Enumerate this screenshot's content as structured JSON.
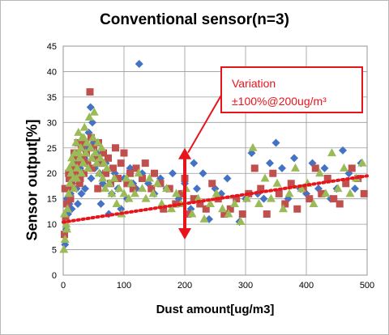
{
  "chart_data": {
    "type": "scatter",
    "title": "Conventional sensor(n=3)",
    "xlabel": "Dust amount[ug/m3]",
    "ylabel": "Sensor output[%]",
    "xlim": [
      0,
      500
    ],
    "ylim": [
      0,
      45
    ],
    "xticks": [
      0,
      100,
      200,
      300,
      400,
      500
    ],
    "yticks": [
      0,
      5,
      10,
      15,
      20,
      25,
      30,
      35,
      40,
      45
    ],
    "grid": true,
    "series_colors": [
      "#4472c4",
      "#c0504d",
      "#9bbb59"
    ],
    "series_markers": [
      "diamond",
      "square",
      "triangle"
    ],
    "series": [
      {
        "values": [
          [
            3,
            6
          ],
          [
            5,
            9
          ],
          [
            8,
            12
          ],
          [
            10,
            14
          ],
          [
            12,
            16
          ],
          [
            15,
            18
          ],
          [
            18,
            20
          ],
          [
            20,
            22
          ],
          [
            22,
            17
          ],
          [
            25,
            19
          ],
          [
            28,
            21
          ],
          [
            30,
            16
          ],
          [
            32,
            20
          ],
          [
            35,
            23
          ],
          [
            38,
            25
          ],
          [
            40,
            22
          ],
          [
            42,
            28
          ],
          [
            45,
            33
          ],
          [
            48,
            30
          ],
          [
            50,
            26
          ],
          [
            52,
            21
          ],
          [
            55,
            24
          ],
          [
            60,
            20
          ],
          [
            62,
            14
          ],
          [
            65,
            18
          ],
          [
            70,
            22
          ],
          [
            75,
            12
          ],
          [
            80,
            16
          ],
          [
            85,
            20
          ],
          [
            90,
            17
          ],
          [
            95,
            13
          ],
          [
            100,
            19
          ],
          [
            105,
            15
          ],
          [
            110,
            21
          ],
          [
            115,
            18
          ],
          [
            120,
            17
          ],
          [
            125,
            41.5
          ],
          [
            130,
            20
          ],
          [
            140,
            18
          ],
          [
            150,
            16
          ],
          [
            160,
            19
          ],
          [
            170,
            17
          ],
          [
            180,
            20
          ],
          [
            190,
            15
          ],
          [
            200,
            18
          ],
          [
            210,
            13
          ],
          [
            215,
            22
          ],
          [
            220,
            17
          ],
          [
            230,
            20
          ],
          [
            240,
            11
          ],
          [
            250,
            17
          ],
          [
            260,
            16
          ],
          [
            270,
            19
          ],
          [
            290,
            10.5
          ],
          [
            300,
            15
          ],
          [
            310,
            24
          ],
          [
            320,
            16
          ],
          [
            330,
            15
          ],
          [
            340,
            22
          ],
          [
            350,
            26
          ],
          [
            360,
            21
          ],
          [
            370,
            15
          ],
          [
            380,
            23
          ],
          [
            390,
            17
          ],
          [
            400,
            16
          ],
          [
            410,
            22
          ],
          [
            420,
            17
          ],
          [
            430,
            21
          ],
          [
            440,
            15
          ],
          [
            450,
            17
          ],
          [
            460,
            24.5
          ],
          [
            470,
            20
          ],
          [
            480,
            17
          ],
          [
            490,
            22
          ],
          [
            6,
            15
          ],
          [
            14,
            13
          ],
          [
            24,
            14
          ],
          [
            36,
            17
          ],
          [
            46,
            19
          ]
        ]
      },
      {
        "values": [
          [
            2,
            8
          ],
          [
            4,
            11
          ],
          [
            6,
            14
          ],
          [
            8,
            17
          ],
          [
            10,
            19
          ],
          [
            12,
            15
          ],
          [
            14,
            18
          ],
          [
            16,
            21
          ],
          [
            18,
            24
          ],
          [
            20,
            20
          ],
          [
            22,
            23
          ],
          [
            24,
            26
          ],
          [
            26,
            22
          ],
          [
            28,
            19
          ],
          [
            30,
            25
          ],
          [
            32,
            23
          ],
          [
            34,
            20
          ],
          [
            36,
            26
          ],
          [
            38,
            24
          ],
          [
            40,
            22
          ],
          [
            44,
            36
          ],
          [
            46,
            27
          ],
          [
            50,
            25
          ],
          [
            54,
            23
          ],
          [
            58,
            26
          ],
          [
            62,
            22
          ],
          [
            66,
            24
          ],
          [
            70,
            20
          ],
          [
            74,
            23
          ],
          [
            78,
            18
          ],
          [
            82,
            21
          ],
          [
            86,
            25
          ],
          [
            90,
            19
          ],
          [
            95,
            22
          ],
          [
            100,
            24
          ],
          [
            105,
            18
          ],
          [
            110,
            20
          ],
          [
            115,
            17
          ],
          [
            120,
            21
          ],
          [
            130,
            19
          ],
          [
            135,
            22
          ],
          [
            145,
            17
          ],
          [
            150,
            20
          ],
          [
            160,
            18
          ],
          [
            165,
            13
          ],
          [
            175,
            17
          ],
          [
            185,
            14
          ],
          [
            195,
            16
          ],
          [
            200,
            19
          ],
          [
            205,
            12
          ],
          [
            215,
            15
          ],
          [
            225,
            14
          ],
          [
            235,
            13
          ],
          [
            245,
            18
          ],
          [
            255,
            15
          ],
          [
            265,
            12
          ],
          [
            275,
            13
          ],
          [
            285,
            15
          ],
          [
            295,
            12
          ],
          [
            305,
            16
          ],
          [
            315,
            21
          ],
          [
            325,
            17
          ],
          [
            335,
            12
          ],
          [
            345,
            20
          ],
          [
            355,
            16
          ],
          [
            365,
            14
          ],
          [
            375,
            18
          ],
          [
            385,
            13
          ],
          [
            395,
            17
          ],
          [
            405,
            15
          ],
          [
            415,
            21
          ],
          [
            425,
            16
          ],
          [
            435,
            19
          ],
          [
            445,
            15
          ],
          [
            455,
            14
          ],
          [
            465,
            18
          ],
          [
            475,
            21
          ],
          [
            485,
            19
          ],
          [
            495,
            16
          ],
          [
            3,
            17
          ],
          [
            9,
            20
          ],
          [
            27,
            18
          ],
          [
            47,
            21
          ],
          [
            57,
            17
          ]
        ]
      },
      {
        "values": [
          [
            1,
            5
          ],
          [
            3,
            7
          ],
          [
            5,
            10
          ],
          [
            7,
            13
          ],
          [
            9,
            16
          ],
          [
            11,
            18
          ],
          [
            13,
            20
          ],
          [
            15,
            22
          ],
          [
            17,
            19
          ],
          [
            19,
            24
          ],
          [
            21,
            26
          ],
          [
            23,
            21
          ],
          [
            25,
            28
          ],
          [
            27,
            23
          ],
          [
            29,
            25
          ],
          [
            31,
            27
          ],
          [
            33,
            22
          ],
          [
            35,
            29
          ],
          [
            37,
            24
          ],
          [
            39,
            26
          ],
          [
            41,
            21
          ],
          [
            43,
            31
          ],
          [
            45,
            25
          ],
          [
            47,
            23
          ],
          [
            49,
            27
          ],
          [
            51,
            32
          ],
          [
            53,
            24
          ],
          [
            55,
            22
          ],
          [
            57,
            26
          ],
          [
            59,
            20
          ],
          [
            61,
            23
          ],
          [
            63,
            25
          ],
          [
            65,
            19
          ],
          [
            67,
            22
          ],
          [
            69,
            17
          ],
          [
            72,
            21
          ],
          [
            76,
            18
          ],
          [
            80,
            16
          ],
          [
            84,
            19
          ],
          [
            88,
            14
          ],
          [
            92,
            17
          ],
          [
            96,
            12
          ],
          [
            100,
            16
          ],
          [
            104,
            19
          ],
          [
            108,
            15
          ],
          [
            112,
            18
          ],
          [
            118,
            16
          ],
          [
            124,
            20
          ],
          [
            130,
            17
          ],
          [
            136,
            15
          ],
          [
            142,
            19
          ],
          [
            148,
            16
          ],
          [
            155,
            18
          ],
          [
            162,
            14
          ],
          [
            170,
            17
          ],
          [
            178,
            13
          ],
          [
            186,
            16
          ],
          [
            194,
            14
          ],
          [
            202,
            17
          ],
          [
            212,
            12
          ],
          [
            222,
            15
          ],
          [
            232,
            11
          ],
          [
            242,
            14
          ],
          [
            252,
            16
          ],
          [
            262,
            13
          ],
          [
            272,
            12
          ],
          [
            282,
            14
          ],
          [
            292,
            10.5
          ],
          [
            302,
            15
          ],
          [
            312,
            25
          ],
          [
            322,
            14
          ],
          [
            332,
            19
          ],
          [
            342,
            15
          ],
          [
            352,
            18
          ],
          [
            362,
            13
          ],
          [
            372,
            16
          ],
          [
            382,
            21
          ],
          [
            392,
            17
          ],
          [
            402,
            18
          ],
          [
            412,
            14
          ],
          [
            422,
            20
          ],
          [
            432,
            16
          ],
          [
            442,
            24
          ],
          [
            452,
            17
          ],
          [
            462,
            21
          ],
          [
            472,
            16
          ],
          [
            482,
            19
          ],
          [
            492,
            22
          ],
          [
            2,
            12
          ],
          [
            6,
            9
          ],
          [
            10,
            21
          ],
          [
            14,
            23
          ],
          [
            18,
            17
          ],
          [
            22,
            19
          ],
          [
            26,
            24
          ],
          [
            30,
            20
          ],
          [
            34,
            27
          ]
        ]
      }
    ],
    "trendline": {
      "x": [
        0,
        500
      ],
      "y": [
        10.4,
        19.5
      ],
      "color": "#e8141c",
      "style": "dotted"
    },
    "annotation": {
      "lines": [
        "Variation",
        "±100%@200ug/m³"
      ],
      "arrow_x": 200,
      "arrow_y": [
        7,
        25
      ]
    }
  }
}
